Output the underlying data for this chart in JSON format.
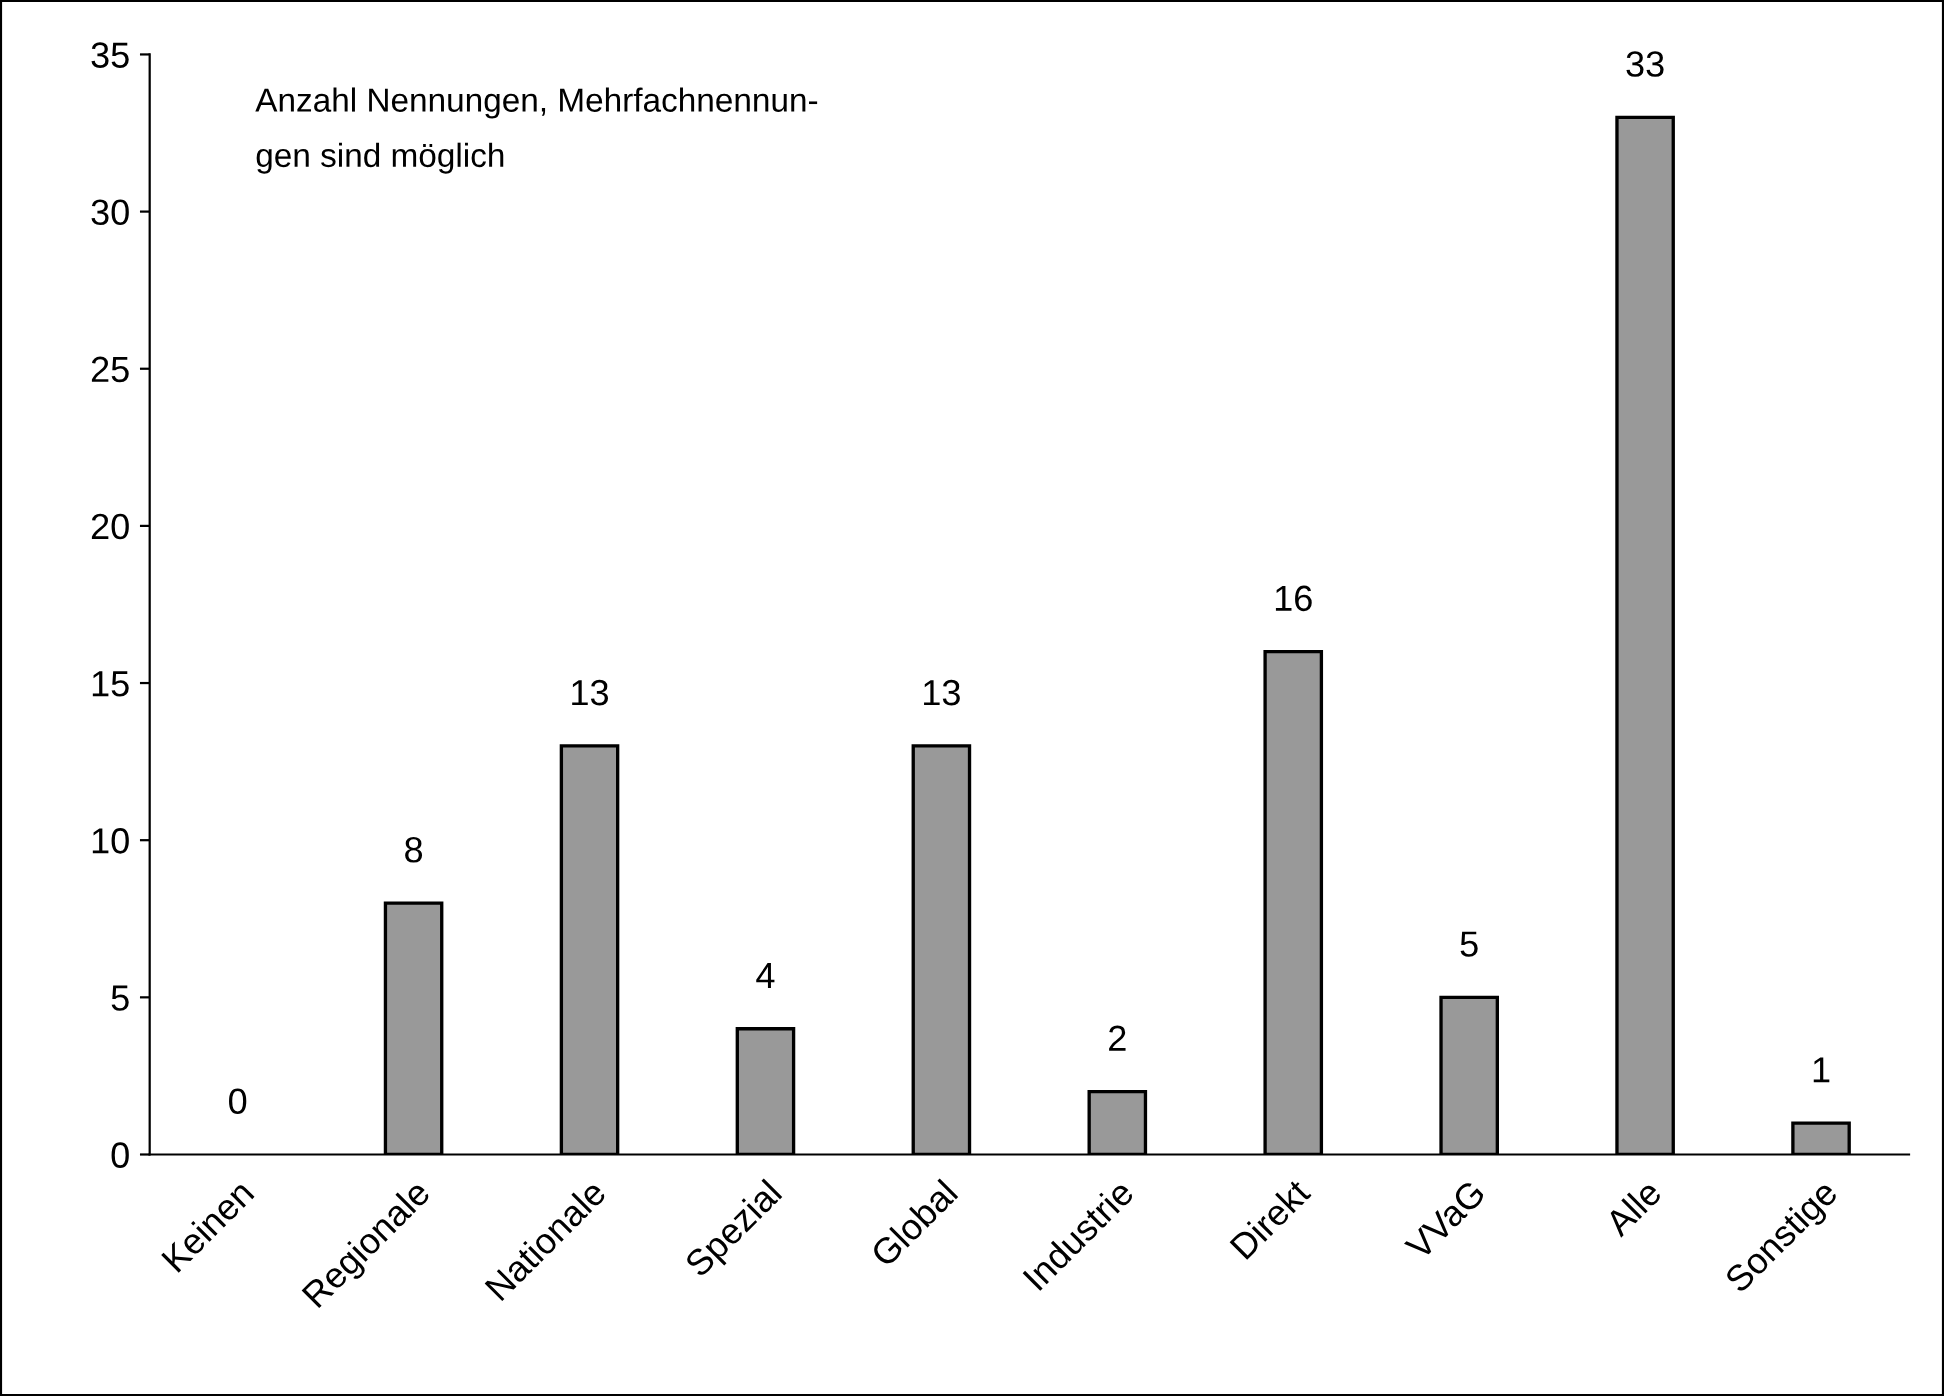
{
  "chart_data": {
    "type": "bar",
    "categories": [
      "Keinen",
      "Regionale",
      "Nationale",
      "Spezial",
      "Global",
      "Industrie",
      "Direkt",
      "VVaG",
      "Alle",
      "Sonstige"
    ],
    "values": [
      0,
      8,
      13,
      4,
      13,
      2,
      16,
      5,
      33,
      1
    ],
    "color": "#999999",
    "data_labels": true,
    "ylim": [
      0,
      35
    ],
    "yticks": [
      0,
      5,
      10,
      15,
      20,
      25,
      30,
      35
    ],
    "grid": false,
    "legend": false,
    "annotations": [
      "Anzahl Nennungen, Mehrfachnennun-\ngen sind möglich"
    ]
  }
}
